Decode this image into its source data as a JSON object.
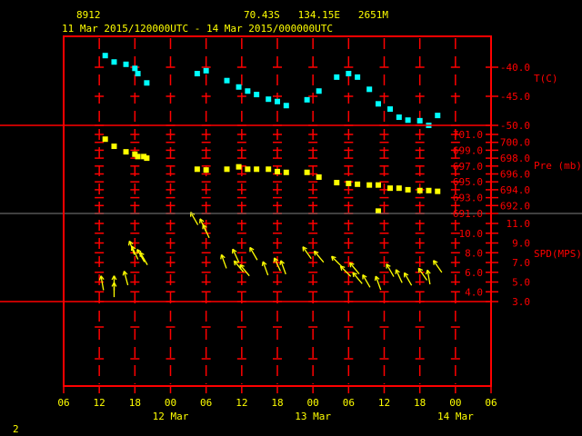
{
  "header": {
    "station_id": "8912",
    "location": "70.43S   134.15E   2651M",
    "period": "11 Mar 2015/120000UTC - 14 Mar 2015/000000UTC"
  },
  "footer": {
    "page_number": "2"
  },
  "colors": {
    "frame": "#ff0000",
    "text": "#ffff00",
    "temperature": "#00ffff",
    "pressure": "#ffff00",
    "wind": "#ffff00",
    "divider_gray": "#808080"
  },
  "chart_data": {
    "type": "scatter",
    "x_axis": {
      "range": [
        "2015-03-11T06:00",
        "2015-03-14T06:00"
      ],
      "tick_labels": [
        "06",
        "12",
        "18",
        "00",
        "06",
        "12",
        "18",
        "00",
        "06",
        "12",
        "18",
        "00",
        "06"
      ],
      "date_labels": [
        {
          "label": "12 Mar",
          "at": "2015-03-12T00:00"
        },
        {
          "label": "13 Mar",
          "at": "2015-03-13T00:00"
        },
        {
          "label": "14 Mar",
          "at": "2015-03-14T00:00"
        }
      ],
      "grid": true
    },
    "panels": [
      {
        "name": "T(C)",
        "ticks": [
          "-40.0",
          "-45.0",
          "-50.0"
        ],
        "range": [
          -50,
          -34.7
        ],
        "points": [
          [
            "2015-03-11T13:00",
            -38.0
          ],
          [
            "2015-03-11T14:30",
            -39.1
          ],
          [
            "2015-03-11T16:30",
            -39.5
          ],
          [
            "2015-03-11T18:00",
            -40.2
          ],
          [
            "2015-03-11T18:30",
            -41.1
          ],
          [
            "2015-03-11T20:00",
            -42.7
          ],
          [
            "2015-03-12T04:30",
            -41.1
          ],
          [
            "2015-03-12T06:00",
            -40.6
          ],
          [
            "2015-03-12T09:30",
            -42.3
          ],
          [
            "2015-03-12T11:30",
            -43.4
          ],
          [
            "2015-03-12T13:00",
            -44.1
          ],
          [
            "2015-03-12T14:30",
            -44.7
          ],
          [
            "2015-03-12T16:30",
            -45.5
          ],
          [
            "2015-03-12T18:00",
            -45.9
          ],
          [
            "2015-03-12T19:30",
            -46.6
          ],
          [
            "2015-03-12T23:00",
            -45.6
          ],
          [
            "2015-03-13T01:00",
            -44.1
          ],
          [
            "2015-03-13T04:00",
            -41.7
          ],
          [
            "2015-03-13T06:00",
            -41.1
          ],
          [
            "2015-03-13T07:30",
            -41.7
          ],
          [
            "2015-03-13T09:30",
            -43.8
          ],
          [
            "2015-03-13T11:00",
            -46.3
          ],
          [
            "2015-03-13T13:00",
            -47.2
          ],
          [
            "2015-03-13T14:30",
            -48.6
          ],
          [
            "2015-03-13T16:00",
            -49.1
          ],
          [
            "2015-03-13T18:00",
            -49.2
          ],
          [
            "2015-03-13T19:30",
            -50.0
          ],
          [
            "2015-03-13T21:00",
            -48.3
          ]
        ]
      },
      {
        "name": "Pre (mb)",
        "ticks": [
          "701.0",
          "700.0",
          "699.0",
          "698.0",
          "697.0",
          "696.0",
          "695.0",
          "694.0",
          "693.0",
          "692.0",
          "691.0"
        ],
        "range": [
          691,
          702.1
        ],
        "points": [
          [
            "2015-03-11T13:00",
            700.4
          ],
          [
            "2015-03-11T14:30",
            699.5
          ],
          [
            "2015-03-11T16:30",
            698.8
          ],
          [
            "2015-03-11T18:00",
            698.5
          ],
          [
            "2015-03-11T18:30",
            698.2
          ],
          [
            "2015-03-11T19:30",
            698.2
          ],
          [
            "2015-03-11T20:00",
            698.0
          ],
          [
            "2015-03-12T04:30",
            696.6
          ],
          [
            "2015-03-12T06:00",
            696.5
          ],
          [
            "2015-03-12T09:30",
            696.6
          ],
          [
            "2015-03-12T11:30",
            696.9
          ],
          [
            "2015-03-12T13:00",
            696.6
          ],
          [
            "2015-03-12T14:30",
            696.6
          ],
          [
            "2015-03-12T16:30",
            696.6
          ],
          [
            "2015-03-12T18:00",
            696.3
          ],
          [
            "2015-03-12T19:30",
            696.2
          ],
          [
            "2015-03-12T23:00",
            696.2
          ],
          [
            "2015-03-13T01:00",
            695.6
          ],
          [
            "2015-03-13T04:00",
            694.9
          ],
          [
            "2015-03-13T06:00",
            694.8
          ],
          [
            "2015-03-13T07:30",
            694.7
          ],
          [
            "2015-03-13T09:30",
            694.6
          ],
          [
            "2015-03-13T11:00",
            694.6
          ],
          [
            "2015-03-13T11:00",
            691.3
          ],
          [
            "2015-03-13T13:00",
            694.2
          ],
          [
            "2015-03-13T14:30",
            694.2
          ],
          [
            "2015-03-13T16:00",
            694.0
          ],
          [
            "2015-03-13T18:00",
            693.9
          ],
          [
            "2015-03-13T19:30",
            693.9
          ],
          [
            "2015-03-13T21:00",
            693.8
          ]
        ]
      },
      {
        "name": "SPD(MPS)",
        "ticks": [
          "11.0",
          "10.0",
          "9.0",
          "8.0",
          "7.0",
          "6.0",
          "5.0",
          "4.0",
          "3.0"
        ],
        "range": [
          3,
          12
        ],
        "vectors_note_fields": [
          "time",
          "speed",
          "direction_from_deg"
        ],
        "points": [
          [
            "2015-03-11T12:30",
            4.9,
            170
          ],
          [
            "2015-03-11T14:30",
            4.9,
            180
          ],
          [
            "2015-03-11T14:30",
            4.2,
            180
          ],
          [
            "2015-03-11T16:30",
            5.4,
            165
          ],
          [
            "2015-03-11T17:30",
            8.5,
            160
          ],
          [
            "2015-03-11T18:00",
            8.0,
            155
          ],
          [
            "2015-03-11T19:00",
            7.7,
            150
          ],
          [
            "2015-03-11T19:30",
            7.4,
            150
          ],
          [
            "2015-03-12T04:00",
            11.5,
            150
          ],
          [
            "2015-03-12T05:30",
            10.8,
            155
          ],
          [
            "2015-03-12T06:00",
            10.2,
            155
          ],
          [
            "2015-03-12T09:00",
            7.1,
            160
          ],
          [
            "2015-03-12T11:00",
            7.7,
            155
          ],
          [
            "2015-03-12T11:30",
            6.6,
            140
          ],
          [
            "2015-03-12T12:30",
            6.2,
            140
          ],
          [
            "2015-03-12T14:00",
            7.9,
            150
          ],
          [
            "2015-03-12T16:00",
            6.4,
            160
          ],
          [
            "2015-03-12T18:00",
            6.8,
            155
          ],
          [
            "2015-03-12T19:00",
            6.5,
            160
          ],
          [
            "2015-03-12T23:00",
            8.0,
            145
          ],
          [
            "2015-03-13T01:00",
            7.6,
            140
          ],
          [
            "2015-03-13T04:00",
            7.1,
            135
          ],
          [
            "2015-03-13T05:30",
            6.1,
            135
          ],
          [
            "2015-03-13T07:00",
            6.4,
            140
          ],
          [
            "2015-03-13T07:30",
            5.4,
            140
          ],
          [
            "2015-03-13T09:00",
            5.1,
            150
          ],
          [
            "2015-03-13T11:00",
            4.9,
            160
          ],
          [
            "2015-03-13T13:00",
            6.2,
            150
          ],
          [
            "2015-03-13T14:30",
            5.6,
            155
          ],
          [
            "2015-03-13T16:00",
            5.3,
            150
          ],
          [
            "2015-03-13T18:30",
            5.8,
            145
          ],
          [
            "2015-03-13T19:30",
            5.5,
            170
          ],
          [
            "2015-03-13T21:00",
            6.6,
            145
          ]
        ]
      }
    ]
  }
}
